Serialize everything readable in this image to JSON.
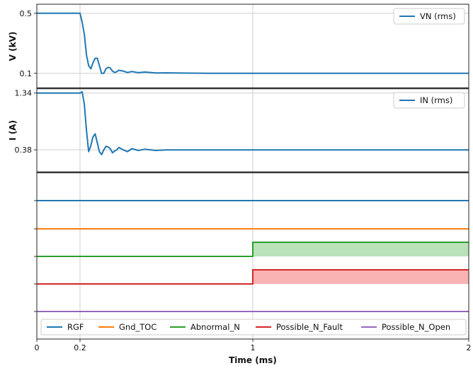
{
  "chart_data": {
    "type": "line",
    "x_axis": {
      "label": "Time (ms)",
      "range": [
        0,
        2
      ],
      "ticks": [
        0,
        0.2,
        1,
        2
      ],
      "tick_labels": [
        "0",
        "0.2",
        "1",
        "2"
      ],
      "grid": true
    },
    "panels": [
      {
        "id": "voltage",
        "ylabel": "V (kV)",
        "ylim": [
          0.0,
          0.56
        ],
        "yticks": [
          0.5,
          0.1
        ],
        "ytick_labels": [
          "0.5",
          "0.1"
        ],
        "grid": true,
        "legend_position": "top-right",
        "series": [
          {
            "name": "VN (rms)",
            "color": "#1f77b4",
            "x": [
              0,
              0.2,
              0.21,
              0.22,
              0.23,
              0.24,
              0.25,
              0.26,
              0.27,
              0.28,
              0.29,
              0.3,
              0.31,
              0.32,
              0.33,
              0.34,
              0.35,
              0.36,
              0.37,
              0.38,
              0.4,
              0.42,
              0.44,
              0.47,
              0.5,
              0.55,
              0.6,
              0.7,
              0.8,
              2
            ],
            "y": [
              0.5,
              0.5,
              0.44,
              0.36,
              0.22,
              0.15,
              0.13,
              0.17,
              0.2,
              0.2,
              0.15,
              0.1,
              0.1,
              0.13,
              0.14,
              0.135,
              0.115,
              0.105,
              0.11,
              0.12,
              0.115,
              0.105,
              0.112,
              0.104,
              0.108,
              0.102,
              0.103,
              0.101,
              0.1,
              0.1
            ]
          }
        ]
      },
      {
        "id": "current",
        "ylabel": "I (A)",
        "ylim": [
          0.0,
          1.42
        ],
        "yticks": [
          1.34,
          0.38
        ],
        "ytick_labels": [
          "1.34",
          "0.38"
        ],
        "grid": true,
        "legend_position": "top-right",
        "series": [
          {
            "name": "IN (rms)",
            "color": "#1f77b4",
            "x": [
              0,
              0.2,
              0.21,
              0.22,
              0.23,
              0.24,
              0.25,
              0.26,
              0.27,
              0.28,
              0.29,
              0.3,
              0.31,
              0.32,
              0.33,
              0.34,
              0.35,
              0.36,
              0.37,
              0.38,
              0.4,
              0.42,
              0.44,
              0.47,
              0.5,
              0.55,
              0.6,
              0.7,
              0.8,
              2
            ],
            "y": [
              1.34,
              1.34,
              1.36,
              1.15,
              0.7,
              0.35,
              0.45,
              0.6,
              0.65,
              0.5,
              0.35,
              0.3,
              0.38,
              0.44,
              0.43,
              0.4,
              0.33,
              0.36,
              0.38,
              0.42,
              0.38,
              0.35,
              0.4,
              0.37,
              0.39,
              0.37,
              0.38,
              0.38,
              0.38,
              0.38
            ]
          }
        ]
      },
      {
        "id": "digital",
        "type": "step",
        "series": [
          {
            "name": "RGF",
            "color": "#1f77b4",
            "x": [
              0,
              2
            ],
            "y": [
              0,
              0
            ],
            "fill": false
          },
          {
            "name": "Gnd_TOC",
            "color": "#ff7f0e",
            "x": [
              0,
              2
            ],
            "y": [
              0,
              0
            ],
            "fill": false
          },
          {
            "name": "Abnormal_N",
            "color": "#2ca02c",
            "fill_color": "#b9e2b9",
            "x": [
              0,
              1,
              1,
              2
            ],
            "y": [
              0,
              0,
              1,
              1
            ],
            "fill": true
          },
          {
            "name": "Possible_N_Fault",
            "color": "#d62728",
            "fill_color": "#f9b3b3",
            "x": [
              0,
              1,
              1,
              2
            ],
            "y": [
              0,
              0,
              1,
              1
            ],
            "fill": true
          },
          {
            "name": "Possible_N_Open",
            "color": "#9467bd",
            "x": [
              0,
              2
            ],
            "y": [
              0,
              0
            ],
            "fill": false
          }
        ],
        "legend_position": "bottom"
      }
    ]
  }
}
